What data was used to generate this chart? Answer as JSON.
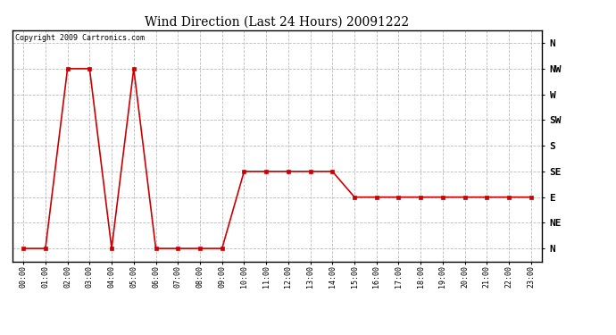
{
  "title": "Wind Direction (Last 24 Hours) 20091222",
  "copyright_text": "Copyright 2009 Cartronics.com",
  "background_color": "#ffffff",
  "plot_bg_color": "#ffffff",
  "line_color": "#cc0000",
  "marker": "s",
  "marker_size": 2.5,
  "line_width": 1.2,
  "x_labels": [
    "00:00",
    "01:00",
    "02:00",
    "03:00",
    "04:00",
    "05:00",
    "06:00",
    "07:00",
    "08:00",
    "09:00",
    "10:00",
    "11:00",
    "12:00",
    "13:00",
    "14:00",
    "15:00",
    "16:00",
    "17:00",
    "18:00",
    "19:00",
    "20:00",
    "21:00",
    "22:00",
    "23:00"
  ],
  "y_ticks": [
    0,
    1,
    2,
    3,
    4,
    5,
    6,
    7,
    8
  ],
  "y_labels": [
    "N",
    "NE",
    "E",
    "SE",
    "S",
    "SW",
    "W",
    "NW",
    "N"
  ],
  "y_data": [
    0,
    0,
    7,
    7,
    0,
    7,
    0,
    0,
    0,
    0,
    3,
    3,
    3,
    3,
    3,
    2,
    2,
    2,
    2,
    2,
    2,
    2,
    2,
    2
  ],
  "grid_color": "#bbbbbb",
  "grid_style": "--",
  "ylim": [
    -0.5,
    8.5
  ],
  "xlim": [
    -0.5,
    23.5
  ],
  "figsize": [
    6.9,
    3.75
  ],
  "dpi": 100
}
